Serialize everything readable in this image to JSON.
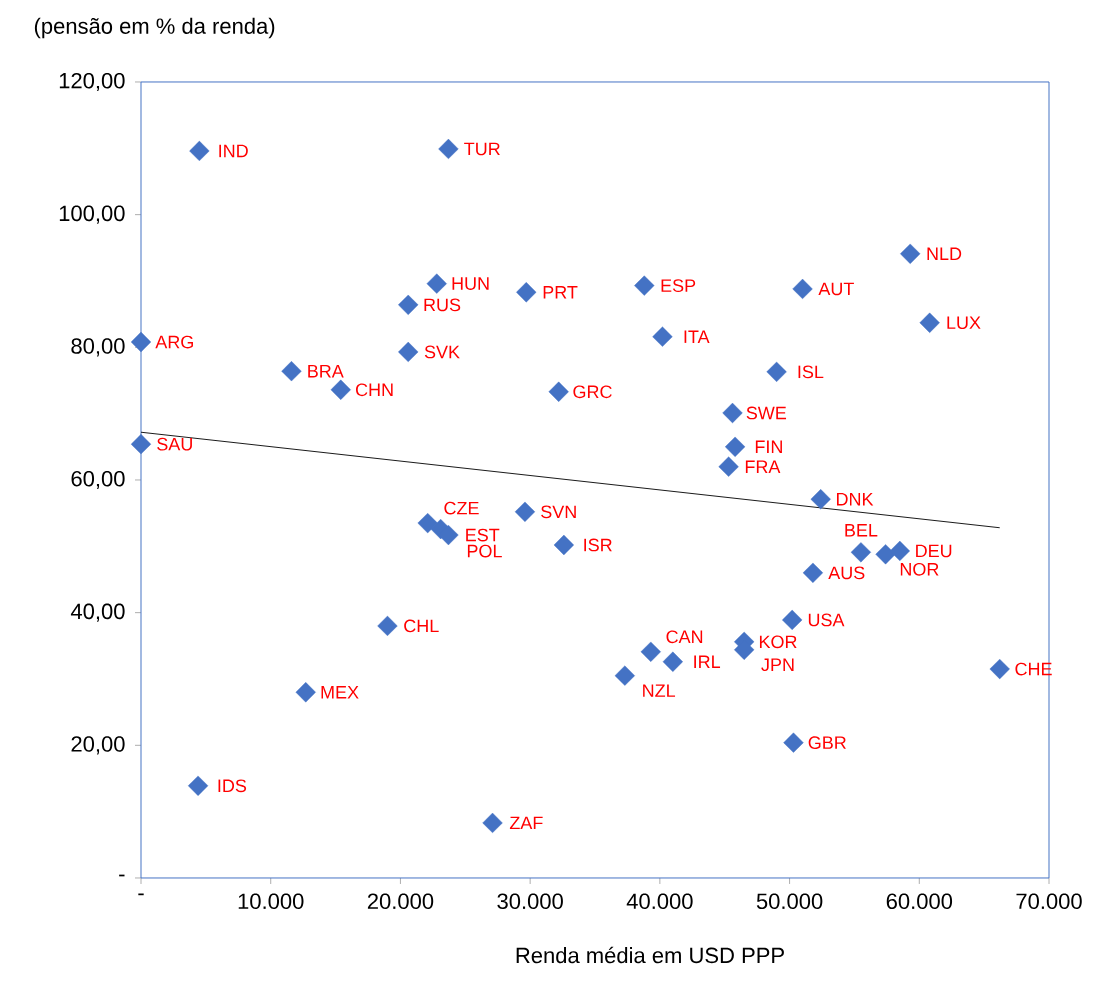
{
  "chart_data": {
    "type": "scatter",
    "ylabel": "(pensão em % da renda)",
    "xlabel": "Renda média em USD PPP",
    "xlim": [
      0,
      70000
    ],
    "ylim": [
      0,
      120
    ],
    "xticks": [
      {
        "value": 0,
        "label": "-"
      },
      {
        "value": 10000,
        "label": "10.000"
      },
      {
        "value": 20000,
        "label": "20.000"
      },
      {
        "value": 30000,
        "label": "30.000"
      },
      {
        "value": 40000,
        "label": "40.000"
      },
      {
        "value": 50000,
        "label": "50.000"
      },
      {
        "value": 60000,
        "label": "60.000"
      },
      {
        "value": 70000,
        "label": "70.000"
      }
    ],
    "yticks": [
      {
        "value": 0,
        "label": "-"
      },
      {
        "value": 20,
        "label": "20,00"
      },
      {
        "value": 40,
        "label": "40,00"
      },
      {
        "value": 60,
        "label": "60,00"
      },
      {
        "value": 80,
        "label": "80,00"
      },
      {
        "value": 100,
        "label": "100,00"
      },
      {
        "value": 120,
        "label": "120,00"
      }
    ],
    "grid": false,
    "series": [
      {
        "marker": "diamond",
        "color": "#4472c4",
        "x": [
          4500,
          23700,
          59300,
          22800,
          20600,
          29700,
          38800,
          51000,
          60800,
          0,
          40200,
          20600,
          11600,
          15400,
          32200,
          49000,
          0,
          45600,
          45300,
          45800,
          52400,
          29600,
          22100,
          23100,
          23700,
          32600,
          55500,
          57400,
          58500,
          51800,
          50200,
          19000,
          46500,
          46500,
          39300,
          41000,
          37300,
          66200,
          12700,
          50300,
          4400,
          27100
        ],
        "values": [
          109.6,
          109.9,
          94.1,
          89.6,
          86.4,
          88.3,
          89.3,
          88.8,
          83.7,
          80.8,
          81.6,
          79.3,
          76.4,
          73.6,
          73.3,
          76.3,
          65.4,
          70.1,
          62.0,
          65.0,
          57.1,
          55.2,
          53.5,
          52.6,
          51.7,
          50.2,
          49.1,
          48.8,
          49.3,
          46.0,
          38.9,
          38.0,
          35.6,
          34.4,
          34.1,
          32.6,
          30.5,
          31.5,
          28.0,
          20.4,
          13.9,
          8.3
        ]
      },
      {
        "type": "line",
        "marker": "none",
        "color": "#000000",
        "x": [
          0,
          66200
        ],
        "values": [
          67.2,
          52.8
        ]
      }
    ],
    "annotations": [
      {
        "text": "IND",
        "x": 4500,
        "y": 109.6
      },
      {
        "text": "TUR",
        "x": 23700,
        "y": 109.9
      },
      {
        "text": "NLD",
        "x": 59300,
        "y": 94.1
      },
      {
        "text": "HUN",
        "x": 22800,
        "y": 89.6
      },
      {
        "text": "RUS",
        "x": 20600,
        "y": 86.4
      },
      {
        "text": "PRT",
        "x": 29700,
        "y": 88.3
      },
      {
        "text": "ESP",
        "x": 38800,
        "y": 89.3
      },
      {
        "text": "AUT",
        "x": 51000,
        "y": 88.8
      },
      {
        "text": "LUX",
        "x": 60800,
        "y": 83.7
      },
      {
        "text": "ARG",
        "x": 0,
        "y": 80.8
      },
      {
        "text": "ITA",
        "x": 40200,
        "y": 81.6
      },
      {
        "text": "SVK",
        "x": 20600,
        "y": 79.3
      },
      {
        "text": "BRA",
        "x": 11600,
        "y": 76.4
      },
      {
        "text": "CHN",
        "x": 15400,
        "y": 73.6
      },
      {
        "text": "GRC",
        "x": 32200,
        "y": 73.3
      },
      {
        "text": "ISL",
        "x": 49000,
        "y": 76.3
      },
      {
        "text": "SAU",
        "x": 0,
        "y": 65.4
      },
      {
        "text": "SWE",
        "x": 45600,
        "y": 70.1
      },
      {
        "text": "FRA",
        "x": 45300,
        "y": 62.0
      },
      {
        "text": "FIN",
        "x": 45800,
        "y": 65.0
      },
      {
        "text": "DNK",
        "x": 52400,
        "y": 57.1
      },
      {
        "text": "SVN",
        "x": 29600,
        "y": 55.2
      },
      {
        "text": "CZE",
        "x": 22100,
        "y": 53.5
      },
      {
        "text": "POL",
        "x": 23100,
        "y": 52.6
      },
      {
        "text": "EST",
        "x": 23700,
        "y": 51.7
      },
      {
        "text": "ISR",
        "x": 32600,
        "y": 50.2
      },
      {
        "text": "BEL",
        "x": 55500,
        "y": 49.1
      },
      {
        "text": "NOR",
        "x": 57400,
        "y": 48.8
      },
      {
        "text": "DEU",
        "x": 58500,
        "y": 49.3
      },
      {
        "text": "AUS",
        "x": 51800,
        "y": 46.0
      },
      {
        "text": "USA",
        "x": 50200,
        "y": 38.9
      },
      {
        "text": "CHL",
        "x": 19000,
        "y": 38.0
      },
      {
        "text": "KOR",
        "x": 46500,
        "y": 35.6
      },
      {
        "text": "JPN",
        "x": 46500,
        "y": 34.4
      },
      {
        "text": "CAN",
        "x": 39300,
        "y": 34.1
      },
      {
        "text": "IRL",
        "x": 41000,
        "y": 32.6
      },
      {
        "text": "NZL",
        "x": 37300,
        "y": 30.5
      },
      {
        "text": "CHE",
        "x": 66200,
        "y": 31.5
      },
      {
        "text": "MEX",
        "x": 12700,
        "y": 28.0
      },
      {
        "text": "GBR",
        "x": 50300,
        "y": 20.4
      },
      {
        "text": "IDS",
        "x": 4400,
        "y": 13.9
      },
      {
        "text": "ZAF",
        "x": 27100,
        "y": 8.3
      }
    ]
  }
}
